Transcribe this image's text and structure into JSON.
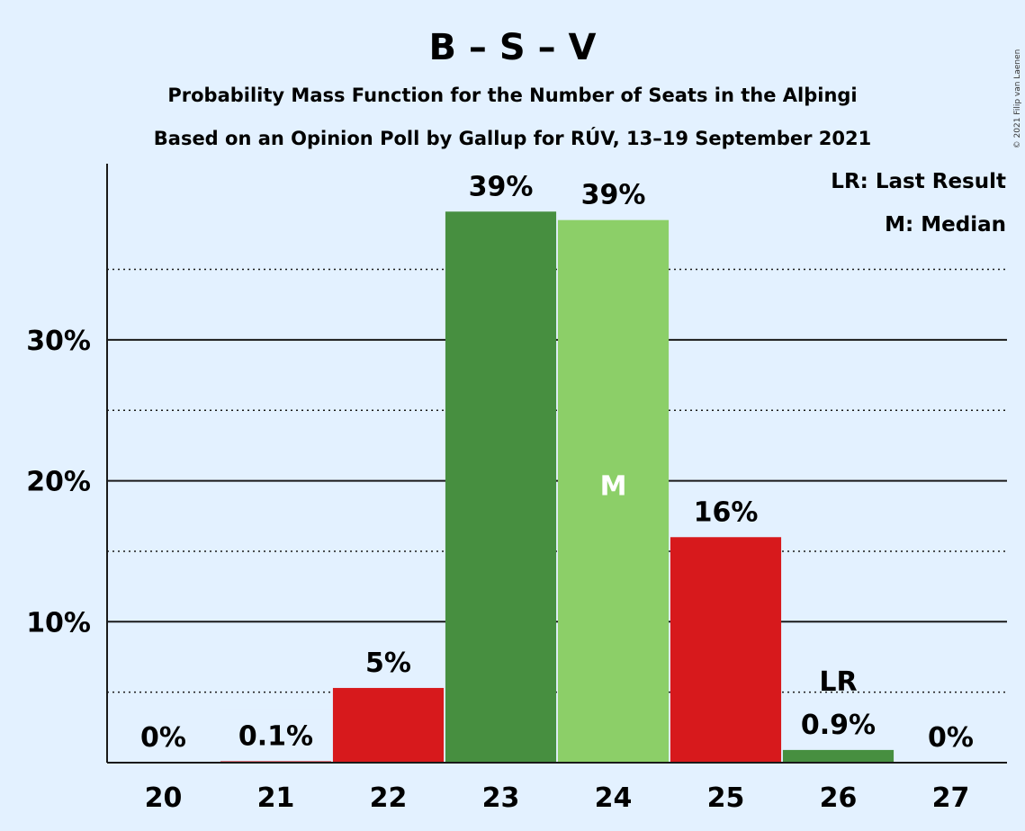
{
  "chart_data": {
    "type": "bar",
    "title": "B – S – V",
    "subtitle_1": "Probability Mass Function for the Number of Seats in the Alþingi",
    "subtitle_2": "Based on an Opinion Poll by Gallup for RÚV, 13–19 September 2021",
    "categories": [
      "20",
      "21",
      "22",
      "23",
      "24",
      "25",
      "26",
      "27"
    ],
    "values": [
      0,
      0.1,
      5.3,
      39.1,
      38.5,
      16.0,
      0.9,
      0
    ],
    "data_labels": [
      "0%",
      "0.1%",
      "5%",
      "39%",
      "39%",
      "16%",
      "0.9%",
      "0%"
    ],
    "bar_colors": [
      "#d7191c",
      "#d7191c",
      "#d7191c",
      "#478f40",
      "#8ccf68",
      "#d7191c",
      "#478f40",
      "#d7191c"
    ],
    "median_index": 4,
    "median_marker": "M",
    "last_result_index": 6,
    "last_result_marker": "LR",
    "ylim": [
      0,
      42.5
    ],
    "major_ticks": [
      10,
      20,
      30
    ],
    "major_tick_labels": [
      "10%",
      "20%",
      "30%"
    ],
    "minor_ticks": [
      5,
      15,
      25,
      35
    ],
    "legend": [
      "LR: Last Result",
      "M: Median"
    ],
    "legend_position": "top-right",
    "grid": true
  },
  "credit": "© 2021 Filip van Laenen"
}
